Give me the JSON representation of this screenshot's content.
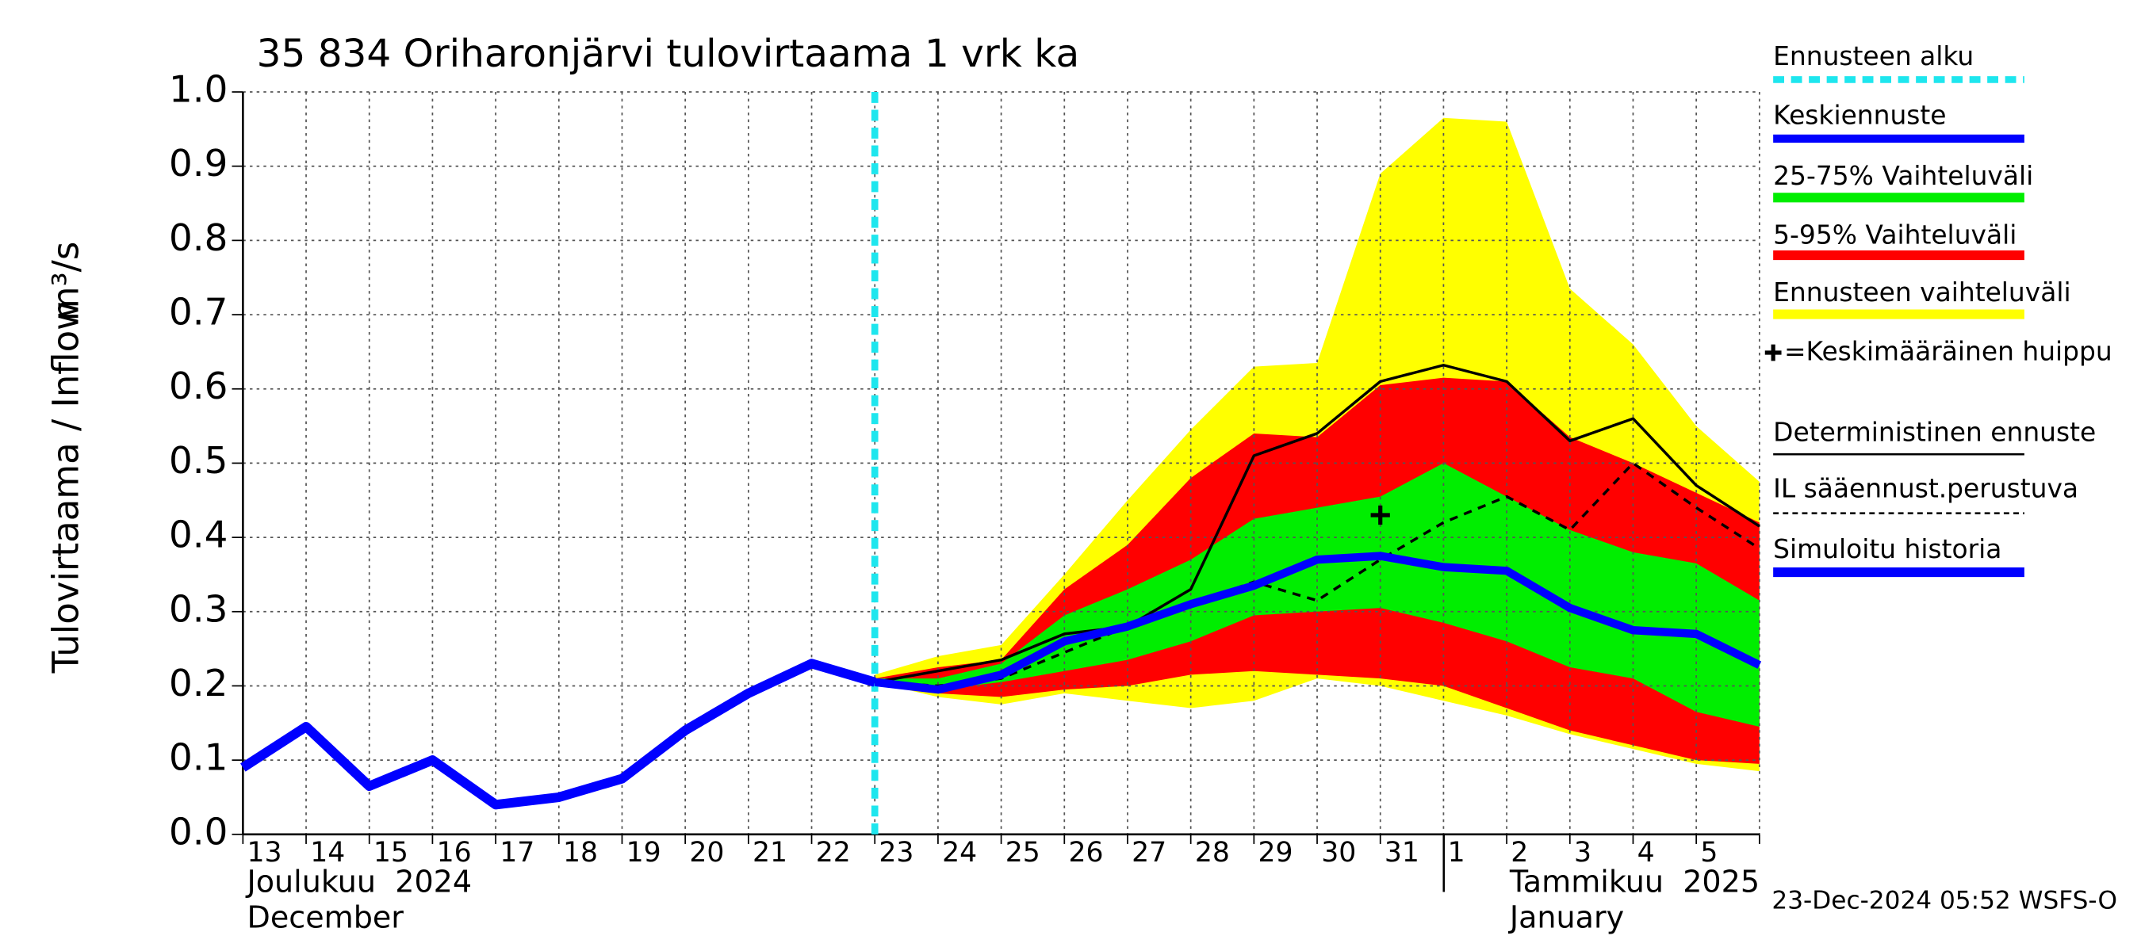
{
  "chart_data": {
    "type": "line",
    "title": "35 834 Oriharonjärvi tulovirtaama 1 vrk ka",
    "y_label": "Tulovirtaama / Inflow",
    "y_unit": "m³/s",
    "month_labels": [
      {
        "fi": "Joulukuu  2024",
        "en": "December"
      },
      {
        "fi": "Tammikuu  2025",
        "en": "January"
      }
    ],
    "timestamp": "23-Dec-2024 05:52 WSFS-O",
    "categories": [
      "13",
      "14",
      "15",
      "16",
      "17",
      "18",
      "19",
      "20",
      "21",
      "22",
      "23",
      "24",
      "25",
      "26",
      "27",
      "28",
      "29",
      "30",
      "31",
      "1",
      "2",
      "3",
      "4",
      "5",
      null
    ],
    "ylim": [
      0,
      1
    ],
    "yticks": [
      {
        "value": 0,
        "label": "0.0"
      },
      0.1,
      0.2,
      0.3,
      0.4,
      0.5,
      0.6,
      0.7,
      0.8,
      0.9,
      {
        "value": 1,
        "label": "1.0"
      }
    ],
    "grid": true,
    "forecast_start": {
      "name": "Ennusteen alku",
      "color": "#1ee6ee",
      "at": "23"
    },
    "bands": [
      {
        "name": "Ennusteen vaihteluväli",
        "color": "#ffff00",
        "lower": [
          null,
          null,
          null,
          null,
          null,
          null,
          null,
          null,
          null,
          null,
          0.205,
          0.185,
          0.175,
          0.19,
          0.18,
          0.17,
          0.18,
          0.21,
          0.2,
          0.18,
          0.16,
          0.135,
          0.115,
          0.095,
          0.085
        ],
        "upper": [
          null,
          null,
          null,
          null,
          null,
          null,
          null,
          null,
          null,
          null,
          0.215,
          0.24,
          0.255,
          0.35,
          0.45,
          0.545,
          0.63,
          0.635,
          0.89,
          0.965,
          0.96,
          0.735,
          0.66,
          0.55,
          0.475
        ]
      },
      {
        "name": "5-95% Vaihteluväli",
        "color": "#ff0000",
        "lower": [
          null,
          null,
          null,
          null,
          null,
          null,
          null,
          null,
          null,
          null,
          0.2,
          0.19,
          0.185,
          0.195,
          0.2,
          0.215,
          0.22,
          0.215,
          0.21,
          0.2,
          0.17,
          0.14,
          0.12,
          0.1,
          0.095
        ],
        "upper": [
          null,
          null,
          null,
          null,
          null,
          null,
          null,
          null,
          null,
          null,
          0.21,
          0.225,
          0.235,
          0.33,
          0.39,
          0.48,
          0.54,
          0.535,
          0.605,
          0.615,
          0.61,
          0.535,
          0.5,
          0.46,
          0.42
        ]
      },
      {
        "name": "25-75% Vaihteluväli",
        "color": "#00ee00",
        "lower": [
          null,
          null,
          null,
          null,
          null,
          null,
          null,
          null,
          null,
          null,
          0.205,
          0.195,
          0.205,
          0.22,
          0.235,
          0.26,
          0.295,
          0.3,
          0.305,
          0.285,
          0.26,
          0.225,
          0.21,
          0.165,
          0.145
        ],
        "upper": [
          null,
          null,
          null,
          null,
          null,
          null,
          null,
          null,
          null,
          null,
          0.21,
          0.21,
          0.23,
          0.295,
          0.33,
          0.37,
          0.425,
          0.44,
          0.455,
          0.5,
          0.455,
          0.41,
          0.38,
          0.365,
          0.315
        ]
      }
    ],
    "series": [
      {
        "name": "Simuloitu historia",
        "color": "#0000ff",
        "style": "solid",
        "width": 7,
        "values": [
          0.09,
          0.145,
          0.065,
          0.1,
          0.04,
          0.05,
          0.075,
          0.14,
          0.19,
          0.23,
          0.205,
          null,
          null,
          null,
          null,
          null,
          null,
          null,
          null,
          null,
          null,
          null,
          null,
          null,
          null
        ]
      },
      {
        "name": "Keskiennuste",
        "color": "#0000ff",
        "style": "solid",
        "width": 6,
        "values": [
          null,
          null,
          null,
          null,
          null,
          null,
          null,
          null,
          null,
          null,
          0.205,
          0.195,
          0.215,
          0.26,
          0.28,
          0.31,
          0.335,
          0.37,
          0.375,
          0.36,
          0.355,
          0.305,
          0.275,
          0.27,
          0.228
        ]
      },
      {
        "name": "Deterministinen ennuste",
        "color": "#000000",
        "style": "solid",
        "width": 2,
        "values": [
          null,
          null,
          null,
          null,
          null,
          null,
          null,
          null,
          null,
          null,
          0.205,
          0.22,
          0.235,
          0.27,
          0.28,
          0.33,
          0.51,
          0.54,
          0.61,
          0.632,
          0.61,
          0.53,
          0.56,
          0.47,
          0.415
        ]
      },
      {
        "name": "IL sääennust.perustuva",
        "color": "#000000",
        "style": "dashed",
        "width": 2,
        "values": [
          null,
          null,
          null,
          null,
          null,
          null,
          null,
          null,
          null,
          null,
          0.205,
          0.2,
          0.21,
          0.245,
          0.28,
          0.31,
          0.34,
          0.315,
          0.37,
          0.42,
          0.455,
          0.41,
          0.5,
          0.44,
          0.385
        ]
      },
      {
        "name": "=Keskimääräinen huippu",
        "color": "#000000",
        "style": "marker",
        "width": 3,
        "values": [
          null,
          null,
          null,
          null,
          null,
          null,
          null,
          null,
          null,
          null,
          null,
          null,
          null,
          null,
          null,
          null,
          null,
          null,
          0.43,
          null,
          null,
          null,
          null,
          null,
          null
        ]
      }
    ]
  }
}
